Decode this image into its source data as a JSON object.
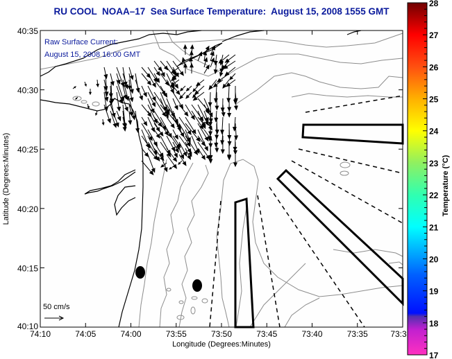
{
  "title": "RU COOL  NOAA–17  Sea Surface Temperature:  August 15, 2008 1555 GMT",
  "overlay": {
    "line1": "Raw Surface Current:",
    "line2": "August 15, 2008 16:00 GMT"
  },
  "scale": {
    "label": "50 cm/s"
  },
  "chart_data": {
    "type": "map",
    "title": "RU COOL  NOAA–17  Sea Surface Temperature:  August 15, 2008 1555 GMT",
    "xlabel": "Longitude (Degrees:Minutes)",
    "ylabel": "Latitude (Degrees:Minutes)",
    "x_ticks": [
      "74:10",
      "74:05",
      "74:00",
      "73:55",
      "73:50",
      "73:45",
      "73:40",
      "73:35",
      "73:3"
    ],
    "y_ticks": [
      "40:10",
      "40:15",
      "40:20",
      "40:25",
      "40:30",
      "40:35"
    ],
    "xlim_minutes_west": [
      -10,
      30
    ],
    "ylim_minutes_north": [
      10,
      35
    ],
    "colorbar": {
      "title": "Temperature (°C)",
      "ticks": [
        "17",
        "18",
        "19",
        "20",
        "21",
        "22",
        "23",
        "24",
        "25",
        "26",
        "27",
        "28"
      ],
      "range": [
        17,
        28
      ],
      "stops": [
        {
          "v": 17,
          "color": "#ff30c0"
        },
        {
          "v": 17.8,
          "color": "#c020d0"
        },
        {
          "v": 18.2,
          "color": "#5030b0"
        },
        {
          "v": 18.3,
          "color": "#0010ff"
        },
        {
          "v": 19.5,
          "color": "#0060ff"
        },
        {
          "v": 21,
          "color": "#00ffff"
        },
        {
          "v": 22,
          "color": "#30ffb0"
        },
        {
          "v": 23,
          "color": "#90f060"
        },
        {
          "v": 24,
          "color": "#ffff00"
        },
        {
          "v": 25,
          "color": "#ffb000"
        },
        {
          "v": 26,
          "color": "#ff5010"
        },
        {
          "v": 27,
          "color": "#ff0000"
        },
        {
          "v": 28,
          "color": "#700000"
        }
      ]
    },
    "markers": [
      {
        "name": "station-1",
        "lon": "74:00.8",
        "lat": "40:14.6"
      },
      {
        "name": "station-2",
        "lon": "73:55.5",
        "lat": "40:13.5"
      }
    ],
    "data_coverage": "No SST pixels visible (cloud/land masked); only currents, bathymetry contours and coastline shown"
  }
}
